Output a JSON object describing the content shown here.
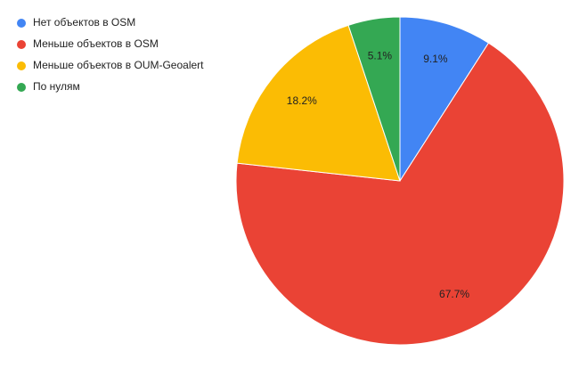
{
  "chart_data": {
    "type": "pie",
    "categories": [
      "Нет объектов в OSM",
      "Меньше объектов в OSM",
      "Меньше объектов в OUM-Geoalert",
      "По нулям"
    ],
    "values": [
      9.1,
      67.7,
      18.2,
      5.1
    ],
    "value_labels": [
      "9.1%",
      "67.7%",
      "18.2%",
      "5.1%"
    ],
    "colors": [
      "#4285f4",
      "#ea4335",
      "#fbbc04",
      "#34a853"
    ],
    "legend": "top-left"
  }
}
